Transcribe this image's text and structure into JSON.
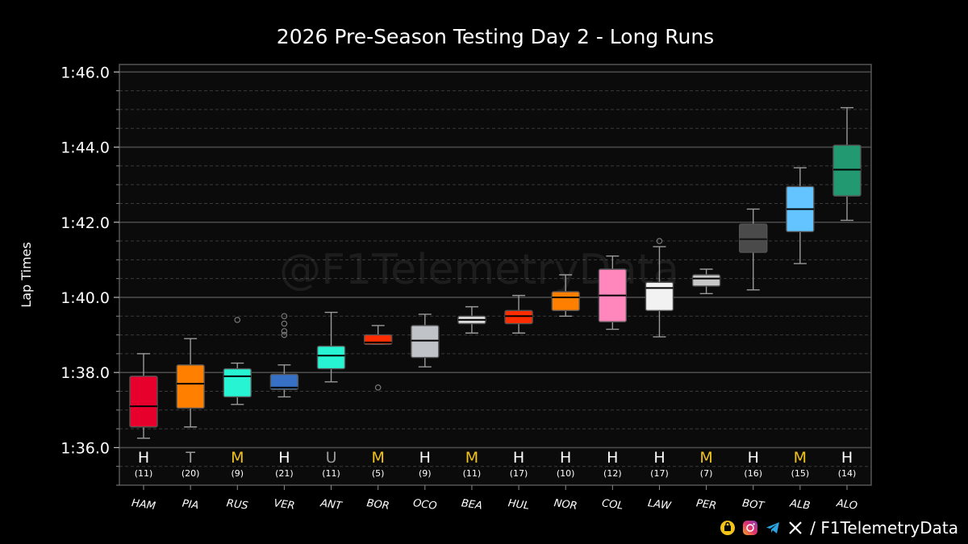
{
  "chart_data": {
    "type": "box",
    "title": "2026 Pre-Season Testing Day 2 - Long Runs",
    "ylabel": "Lap Times",
    "watermark": "@F1TelemetryData",
    "ylim": [
      95.0,
      106.2
    ],
    "yticks": [
      {
        "value": 96,
        "label": "1:36.0"
      },
      {
        "value": 98,
        "label": "1:38.0"
      },
      {
        "value": 100,
        "label": "1:40.0"
      },
      {
        "value": 102,
        "label": "1:42.0"
      },
      {
        "value": 104,
        "label": "1:44.0"
      },
      {
        "value": 106,
        "label": "1:46.0"
      }
    ],
    "minor_step": 0.5,
    "grid": true,
    "compound_colors": {
      "H": "#ffffff",
      "M": "#f2c318",
      "T": "#9a9a9a",
      "U": "#9a9a9a"
    },
    "drivers": [
      {
        "name": "HAM",
        "color": "#e8002d",
        "compound": "H",
        "laps": "(11)",
        "min": 96.25,
        "q1": 96.55,
        "median": 97.1,
        "q3": 97.9,
        "max": 98.5,
        "outliers": []
      },
      {
        "name": "PIA",
        "color": "#ff8000",
        "compound": "T",
        "laps": "(20)",
        "min": 96.55,
        "q1": 97.05,
        "median": 97.7,
        "q3": 98.2,
        "max": 98.9,
        "outliers": []
      },
      {
        "name": "RUS",
        "color": "#27f4d2",
        "compound": "M",
        "laps": "(9)",
        "min": 97.15,
        "q1": 97.35,
        "median": 97.9,
        "q3": 98.1,
        "max": 98.25,
        "outliers": [
          99.4
        ]
      },
      {
        "name": "VER",
        "color": "#3671c6",
        "compound": "H",
        "laps": "(21)",
        "min": 97.35,
        "q1": 97.55,
        "median": 97.6,
        "q3": 97.95,
        "max": 98.2,
        "outliers": [
          99.5,
          99.3,
          99.1,
          99.0
        ]
      },
      {
        "name": "ANT",
        "color": "#27f4d2",
        "compound": "U",
        "laps": "(11)",
        "min": 97.75,
        "q1": 98.1,
        "median": 98.45,
        "q3": 98.7,
        "max": 99.6,
        "outliers": []
      },
      {
        "name": "BOR",
        "color": "#ff2d00",
        "compound": "M",
        "laps": "(5)",
        "min": 98.75,
        "q1": 98.75,
        "median": 98.8,
        "q3": 99.0,
        "max": 99.25,
        "outliers": [
          97.6
        ]
      },
      {
        "name": "OCO",
        "color": "#c0c3c8",
        "compound": "H",
        "laps": "(9)",
        "min": 98.15,
        "q1": 98.4,
        "median": 98.85,
        "q3": 99.25,
        "max": 99.55,
        "outliers": []
      },
      {
        "name": "BEA",
        "color": "#d8d8d8",
        "compound": "M",
        "laps": "(11)",
        "min": 99.05,
        "q1": 99.3,
        "median": 99.4,
        "q3": 99.5,
        "max": 99.75,
        "outliers": []
      },
      {
        "name": "HUL",
        "color": "#ff2d00",
        "compound": "H",
        "laps": "(17)",
        "min": 99.05,
        "q1": 99.3,
        "median": 99.5,
        "q3": 99.65,
        "max": 100.05,
        "outliers": []
      },
      {
        "name": "NOR",
        "color": "#ff8000",
        "compound": "H",
        "laps": "(10)",
        "min": 99.5,
        "q1": 99.65,
        "median": 100.0,
        "q3": 100.15,
        "max": 100.6,
        "outliers": []
      },
      {
        "name": "COL",
        "color": "#ff87bc",
        "compound": "H",
        "laps": "(12)",
        "min": 99.15,
        "q1": 99.35,
        "median": 100.05,
        "q3": 100.75,
        "max": 101.1,
        "outliers": []
      },
      {
        "name": "LAW",
        "color": "#f2f2f2",
        "compound": "H",
        "laps": "(17)",
        "min": 98.95,
        "q1": 99.65,
        "median": 100.25,
        "q3": 100.4,
        "max": 101.35,
        "outliers": [
          101.5
        ]
      },
      {
        "name": "PER",
        "color": "#c8c8c8",
        "compound": "M",
        "laps": "(7)",
        "min": 100.1,
        "q1": 100.3,
        "median": 100.5,
        "q3": 100.6,
        "max": 100.75,
        "outliers": []
      },
      {
        "name": "BOT",
        "color": "#4a4a4a",
        "compound": "H",
        "laps": "(16)",
        "min": 100.2,
        "q1": 101.2,
        "median": 101.55,
        "q3": 101.95,
        "max": 102.35,
        "outliers": []
      },
      {
        "name": "ALB",
        "color": "#64c4ff",
        "compound": "M",
        "laps": "(15)",
        "min": 100.9,
        "q1": 101.75,
        "median": 102.35,
        "q3": 102.95,
        "max": 103.45,
        "outliers": []
      },
      {
        "name": "ALO",
        "color": "#229971",
        "compound": "H",
        "laps": "(14)",
        "min": 102.05,
        "q1": 102.7,
        "median": 103.4,
        "q3": 104.05,
        "max": 105.05,
        "outliers": []
      }
    ]
  },
  "footer": {
    "handle": "/ F1TelemetryData"
  },
  "icons": [
    "shop-icon",
    "instagram-icon",
    "telegram-icon",
    "x-icon"
  ]
}
